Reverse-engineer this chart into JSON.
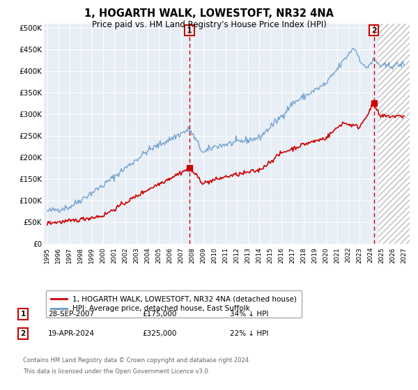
{
  "title": "1, HOGARTH WALK, LOWESTOFT, NR32 4NA",
  "subtitle": "Price paid vs. HM Land Registry's House Price Index (HPI)",
  "red_label": "1, HOGARTH WALK, LOWESTOFT, NR32 4NA (detached house)",
  "blue_label": "HPI: Average price, detached house, East Suffolk",
  "annotation1": {
    "num": "1",
    "date": "28-SEP-2007",
    "price": "£175,000",
    "pct": "34% ↓ HPI"
  },
  "annotation2": {
    "num": "2",
    "date": "19-APR-2024",
    "price": "£325,000",
    "pct": "22% ↓ HPI"
  },
  "footer1": "Contains HM Land Registry data © Crown copyright and database right 2024.",
  "footer2": "This data is licensed under the Open Government Licence v3.0.",
  "yticks": [
    0,
    50000,
    100000,
    150000,
    200000,
    250000,
    300000,
    350000,
    400000,
    450000,
    500000
  ],
  "plot_bg": "#e8eef5",
  "red_color": "#cc0000",
  "blue_color": "#6699cc",
  "marker1_year": 2007.75,
  "marker2_year": 2024.3,
  "hatch_start": 2024.7,
  "xmin": 1995,
  "xmax": 2027
}
